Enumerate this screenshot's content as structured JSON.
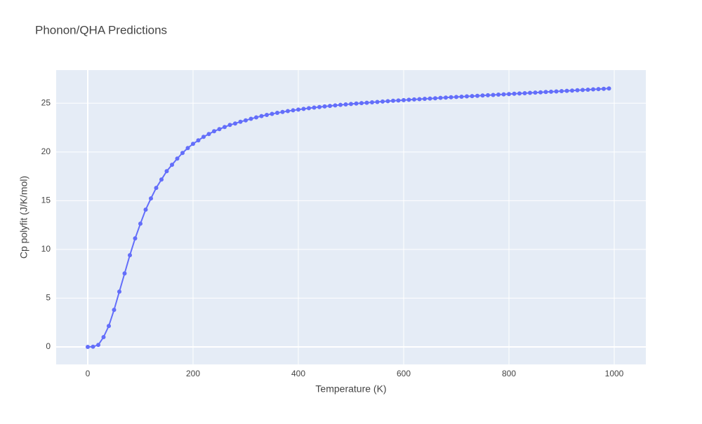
{
  "chart_data": {
    "type": "line",
    "title": "Phonon/QHA Predictions",
    "x_label": "Temperature (K)",
    "y_label": "Cp polyfit (J/K/mol)",
    "x": [
      0,
      10,
      20,
      30,
      40,
      50,
      60,
      70,
      80,
      90,
      100,
      110,
      120,
      130,
      140,
      150,
      160,
      170,
      180,
      190,
      200,
      210,
      220,
      230,
      240,
      250,
      260,
      270,
      280,
      290,
      300,
      310,
      320,
      330,
      340,
      350,
      360,
      370,
      380,
      390,
      400,
      410,
      420,
      430,
      440,
      450,
      460,
      470,
      480,
      490,
      500,
      510,
      520,
      530,
      540,
      550,
      560,
      570,
      580,
      590,
      600,
      610,
      620,
      630,
      640,
      650,
      660,
      670,
      680,
      690,
      700,
      710,
      720,
      730,
      740,
      750,
      760,
      770,
      780,
      790,
      800,
      810,
      820,
      830,
      840,
      850,
      860,
      870,
      880,
      890,
      900,
      910,
      920,
      930,
      940,
      950,
      960,
      970,
      980,
      990
    ],
    "series": [
      {
        "color": "#636efa",
        "values": [
          0,
          0.02,
          0.2,
          1.0,
          2.15,
          3.8,
          5.67,
          7.54,
          9.41,
          11.13,
          12.64,
          14.08,
          15.23,
          16.31,
          17.17,
          18.03,
          18.68,
          19.32,
          19.9,
          20.4,
          20.83,
          21.19,
          21.55,
          21.84,
          22.13,
          22.34,
          22.56,
          22.77,
          22.92,
          23.1,
          23.24,
          23.4,
          23.55,
          23.68,
          23.8,
          23.91,
          24.01,
          24.1,
          24.19,
          24.27,
          24.35,
          24.42,
          24.49,
          24.55,
          24.61,
          24.67,
          24.72,
          24.78,
          24.83,
          24.88,
          24.92,
          24.97,
          25.01,
          25.05,
          25.09,
          25.13,
          25.17,
          25.21,
          25.25,
          25.28,
          25.32,
          25.35,
          25.39,
          25.42,
          25.45,
          25.48,
          25.51,
          25.55,
          25.58,
          25.61,
          25.64,
          25.67,
          25.7,
          25.73,
          25.76,
          25.79,
          25.82,
          25.85,
          25.88,
          25.91,
          25.94,
          25.97,
          26.0,
          26.03,
          26.06,
          26.09,
          26.12,
          26.15,
          26.18,
          26.21,
          26.24,
          26.27,
          26.3,
          26.33,
          26.36,
          26.39,
          26.42,
          26.45,
          26.48,
          26.51
        ]
      }
    ],
    "xlim": [
      -60,
      1060
    ],
    "xticks": [
      0,
      200,
      400,
      600,
      800,
      1000
    ],
    "ylim": [
      -1.8,
      28.4
    ],
    "yticks": [
      0,
      5,
      10,
      15,
      20,
      25
    ],
    "grid": true
  }
}
